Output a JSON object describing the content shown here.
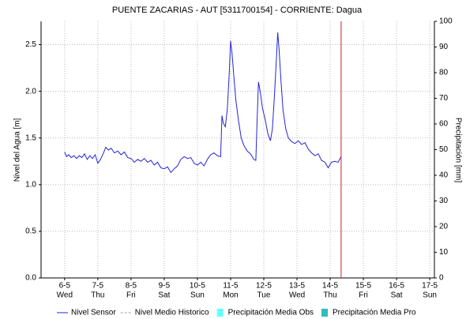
{
  "chart_data": {
    "type": "line",
    "title": "PUENTE ZACARIAS - AUT   [5311700154] - CORRIENTE: Dagua",
    "ylabel": "Nivel del Agua [m]",
    "y2label": "Precipitación [mm]",
    "xlim": [
      5.29,
      17.14
    ],
    "xticks": [
      {
        "value": 6,
        "label": "6-5"
      },
      {
        "value": 7,
        "label": "7-5"
      },
      {
        "value": 8,
        "label": "8-5"
      },
      {
        "value": 9,
        "label": "9-5"
      },
      {
        "value": 10,
        "label": "10-5"
      },
      {
        "value": 11,
        "label": "11-5"
      },
      {
        "value": 12,
        "label": "12-5"
      },
      {
        "value": 13,
        "label": "13-5"
      },
      {
        "value": 14,
        "label": "14-5"
      },
      {
        "value": 15,
        "label": "15-5"
      },
      {
        "value": 16,
        "label": "16-5"
      },
      {
        "value": 17,
        "label": "17-5"
      }
    ],
    "xtick_sublabels": [
      "Wed",
      "Thu",
      "Fri",
      "Sat",
      "Sun",
      "Mon",
      "Tue",
      "Wed",
      "Thu",
      "Fri",
      "Sat",
      "Sun"
    ],
    "ylim": [
      0,
      2.75
    ],
    "yticks": [
      {
        "value": 0,
        "label": "0.0"
      },
      0.5,
      {
        "value": 1,
        "label": "1.0"
      },
      1.5,
      {
        "value": 2,
        "label": "2.0"
      },
      2.5
    ],
    "y2lim": [
      0,
      100
    ],
    "y2ticks": [
      0,
      10,
      20,
      30,
      40,
      50,
      60,
      70,
      80,
      90,
      100
    ],
    "grid": true,
    "x": [
      6.0,
      6.06,
      6.12,
      6.2,
      6.28,
      6.36,
      6.44,
      6.52,
      6.6,
      6.68,
      6.76,
      6.84,
      6.92,
      7.0,
      7.08,
      7.16,
      7.24,
      7.32,
      7.4,
      7.5,
      7.6,
      7.7,
      7.8,
      7.9,
      8.0,
      8.1,
      8.2,
      8.3,
      8.4,
      8.5,
      8.6,
      8.7,
      8.8,
      8.9,
      9.0,
      9.1,
      9.2,
      9.3,
      9.4,
      9.5,
      9.6,
      9.7,
      9.8,
      9.9,
      10.0,
      10.1,
      10.2,
      10.3,
      10.4,
      10.5,
      10.6,
      10.7,
      10.74,
      10.78,
      10.84,
      10.9,
      10.96,
      11.0,
      11.04,
      11.1,
      11.16,
      11.24,
      11.32,
      11.4,
      11.5,
      11.6,
      11.7,
      11.76,
      11.8,
      11.84,
      11.9,
      11.96,
      12.04,
      12.12,
      12.2,
      12.26,
      12.32,
      12.38,
      12.42,
      12.46,
      12.52,
      12.58,
      12.66,
      12.74,
      12.84,
      12.94,
      13.04,
      13.14,
      13.24,
      13.34,
      13.44,
      13.54,
      13.64,
      13.74,
      13.84,
      13.94,
      14.04,
      14.14,
      14.24,
      14.33
    ],
    "series": [
      {
        "name": "Nivel Sensor",
        "color": "#2424d8",
        "values": [
          1.35,
          1.3,
          1.32,
          1.29,
          1.31,
          1.28,
          1.31,
          1.29,
          1.33,
          1.27,
          1.31,
          1.28,
          1.32,
          1.23,
          1.27,
          1.33,
          1.4,
          1.37,
          1.39,
          1.34,
          1.36,
          1.32,
          1.35,
          1.29,
          1.28,
          1.24,
          1.27,
          1.25,
          1.28,
          1.24,
          1.26,
          1.21,
          1.24,
          1.18,
          1.17,
          1.19,
          1.13,
          1.17,
          1.2,
          1.27,
          1.3,
          1.28,
          1.29,
          1.23,
          1.21,
          1.24,
          1.2,
          1.27,
          1.32,
          1.34,
          1.31,
          1.3,
          1.74,
          1.66,
          1.62,
          1.8,
          2.2,
          2.54,
          2.42,
          2.15,
          1.9,
          1.68,
          1.5,
          1.42,
          1.36,
          1.33,
          1.27,
          1.26,
          1.7,
          2.1,
          1.98,
          1.82,
          1.7,
          1.55,
          1.47,
          1.6,
          1.95,
          2.35,
          2.63,
          2.45,
          2.1,
          1.8,
          1.6,
          1.5,
          1.46,
          1.44,
          1.47,
          1.43,
          1.45,
          1.38,
          1.34,
          1.31,
          1.33,
          1.26,
          1.24,
          1.18,
          1.24,
          1.25,
          1.24,
          1.3
        ]
      }
    ],
    "extra_legend": [
      {
        "name": "Nivel Medio Historico",
        "color": "#a0a0a0",
        "symbol": "dashed"
      },
      {
        "name": "Precipitación Media Obs",
        "color": "#66ffff",
        "symbol": "box"
      },
      {
        "name": "Precipitación Media Pro",
        "color": "#33bbbb",
        "symbol": "box"
      }
    ],
    "marker_line": {
      "x": 14.33,
      "color": "#cc2222"
    }
  }
}
